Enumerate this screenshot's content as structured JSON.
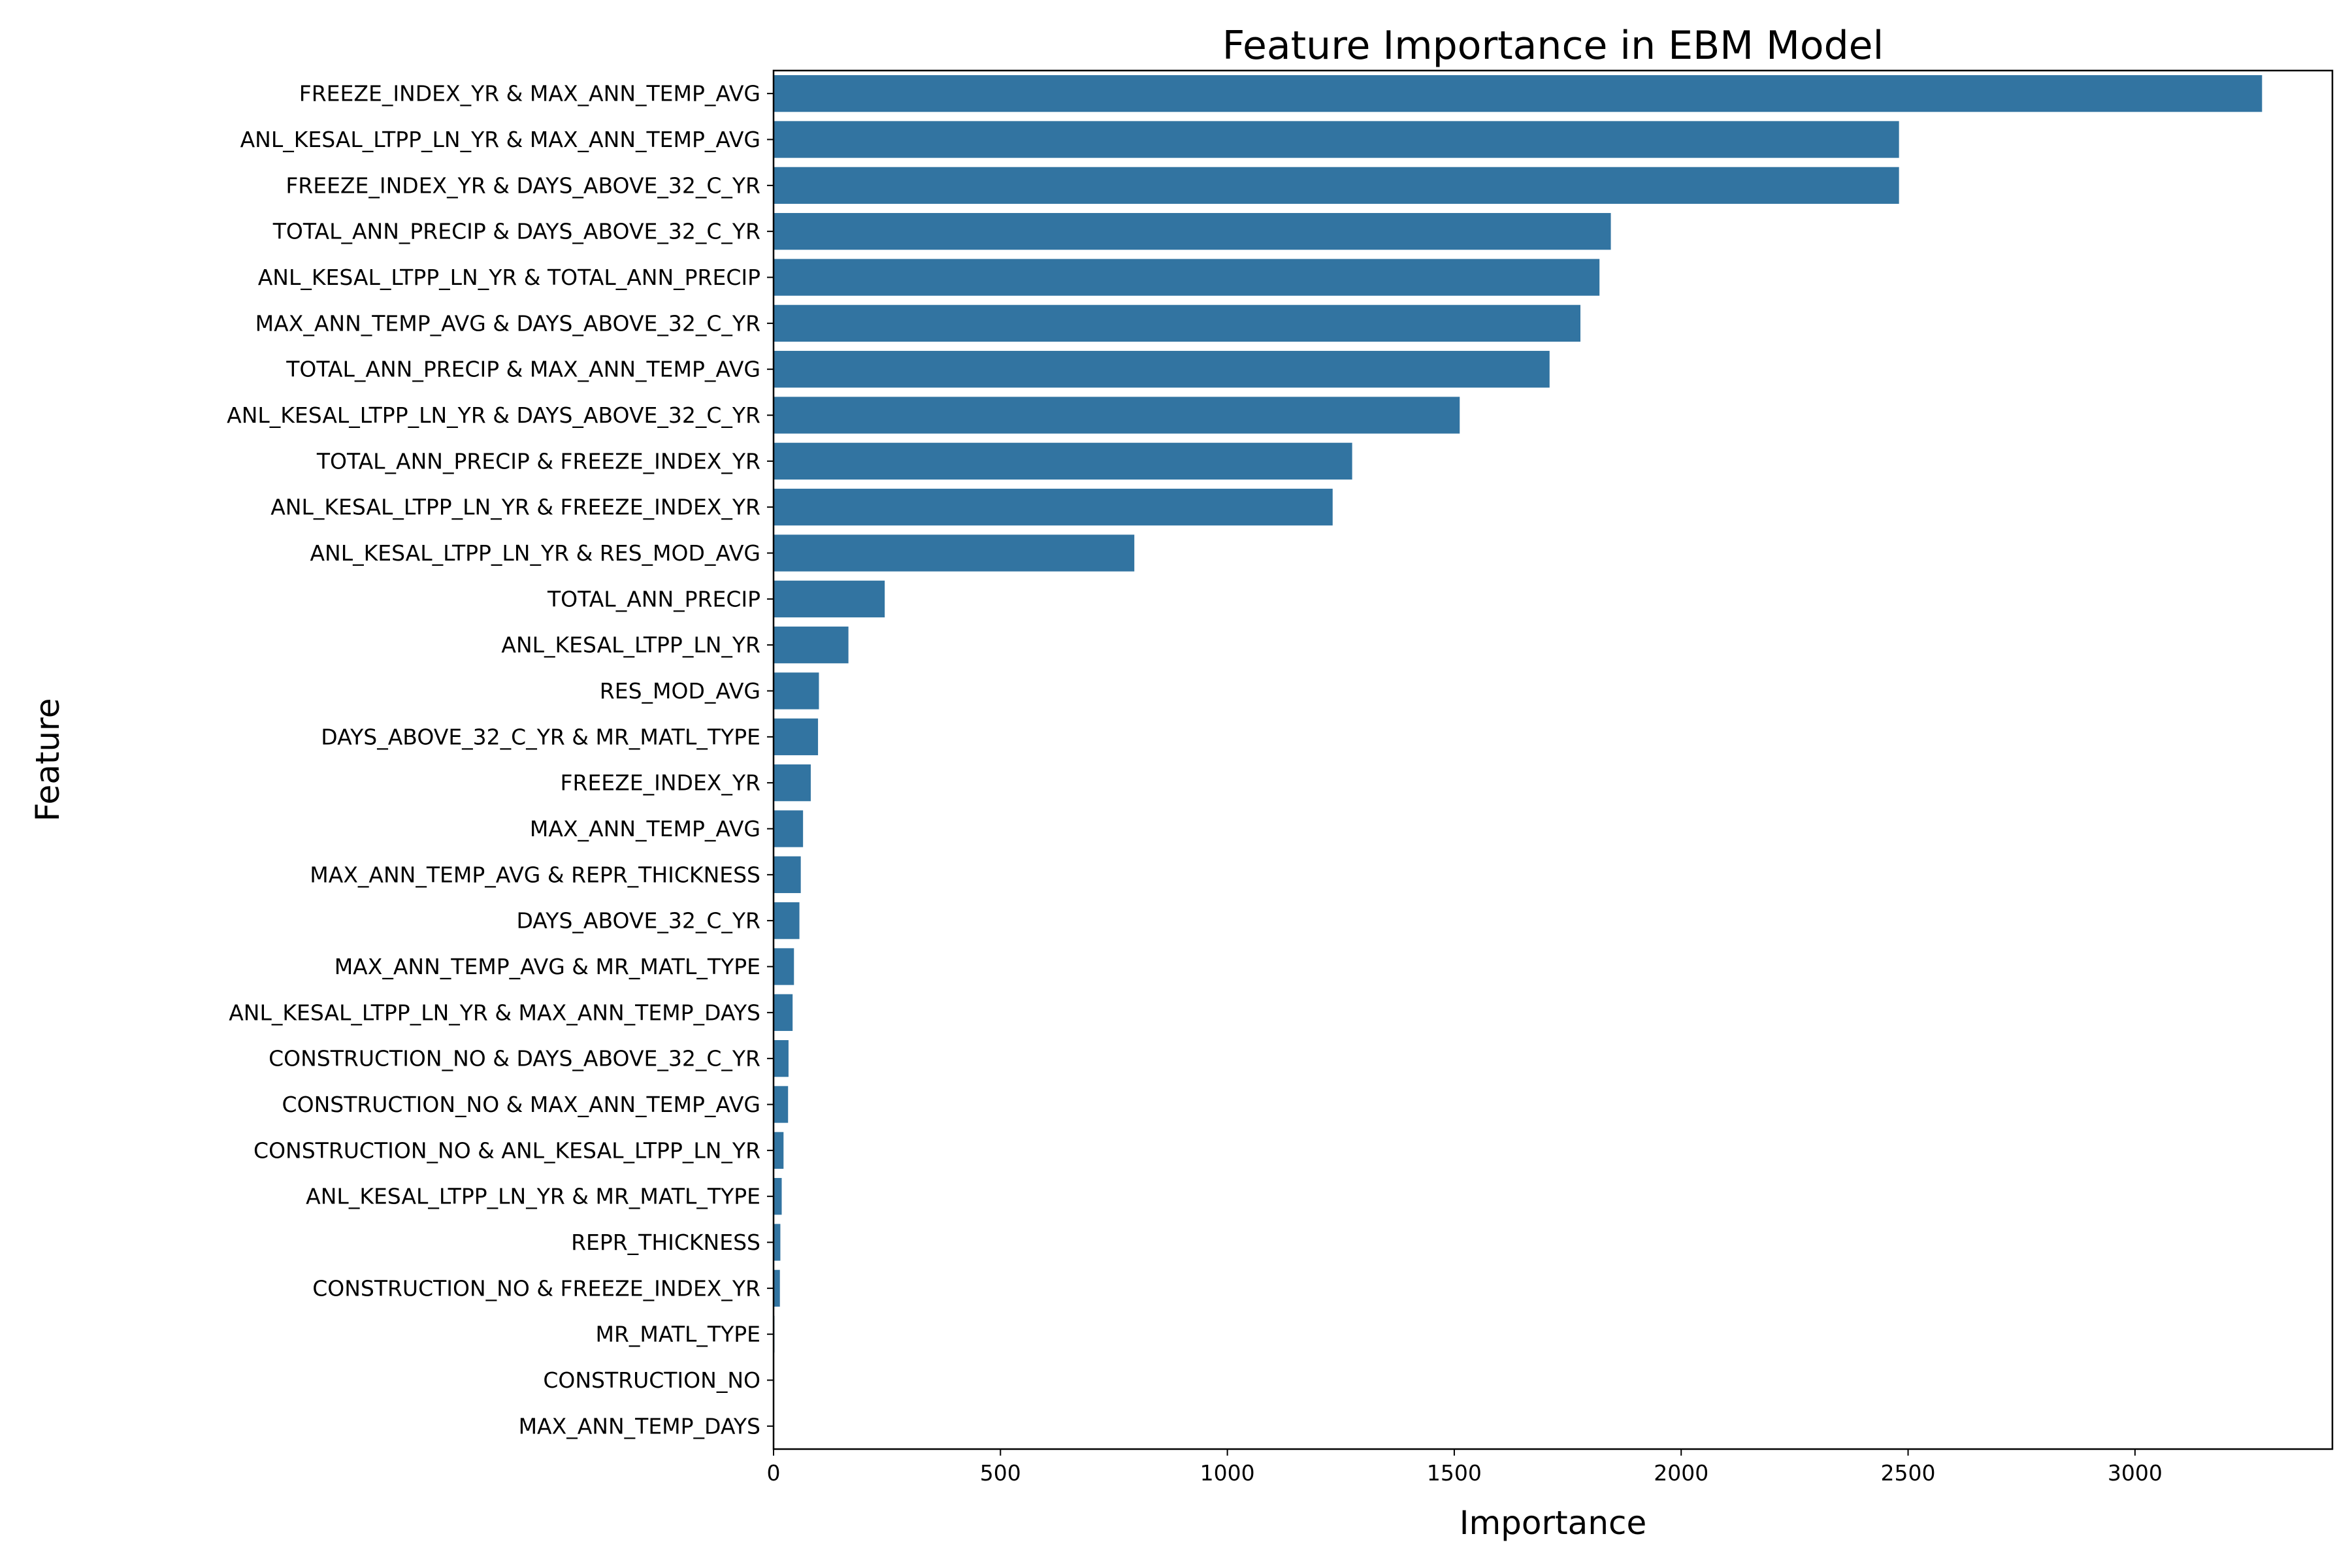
{
  "chart_data": {
    "type": "bar",
    "orientation": "horizontal",
    "title": "Feature Importance in EBM Model",
    "xlabel": "Importance",
    "ylabel": "Feature",
    "xlim": [
      0,
      3435
    ],
    "xticks": [
      0,
      500,
      1000,
      1500,
      2000,
      2500,
      3000
    ],
    "grid": false,
    "bar_color": "#3274a1",
    "categories": [
      "FREEZE_INDEX_YR & MAX_ANN_TEMP_AVG",
      "ANL_KESAL_LTPP_LN_YR & MAX_ANN_TEMP_AVG",
      "FREEZE_INDEX_YR & DAYS_ABOVE_32_C_YR",
      "TOTAL_ANN_PRECIP & DAYS_ABOVE_32_C_YR",
      "ANL_KESAL_LTPP_LN_YR & TOTAL_ANN_PRECIP",
      "MAX_ANN_TEMP_AVG & DAYS_ABOVE_32_C_YR",
      "TOTAL_ANN_PRECIP & MAX_ANN_TEMP_AVG",
      "ANL_KESAL_LTPP_LN_YR & DAYS_ABOVE_32_C_YR",
      "TOTAL_ANN_PRECIP & FREEZE_INDEX_YR",
      "ANL_KESAL_LTPP_LN_YR & FREEZE_INDEX_YR",
      "ANL_KESAL_LTPP_LN_YR & RES_MOD_AVG",
      "TOTAL_ANN_PRECIP",
      "ANL_KESAL_LTPP_LN_YR",
      "RES_MOD_AVG",
      "DAYS_ABOVE_32_C_YR & MR_MATL_TYPE",
      "FREEZE_INDEX_YR",
      "MAX_ANN_TEMP_AVG",
      "MAX_ANN_TEMP_AVG & REPR_THICKNESS",
      "DAYS_ABOVE_32_C_YR",
      "MAX_ANN_TEMP_AVG & MR_MATL_TYPE",
      "ANL_KESAL_LTPP_LN_YR & MAX_ANN_TEMP_DAYS",
      "CONSTRUCTION_NO & DAYS_ABOVE_32_C_YR",
      "CONSTRUCTION_NO & MAX_ANN_TEMP_AVG",
      "CONSTRUCTION_NO & ANL_KESAL_LTPP_LN_YR",
      "ANL_KESAL_LTPP_LN_YR & MR_MATL_TYPE",
      "REPR_THICKNESS",
      "CONSTRUCTION_NO & FREEZE_INDEX_YR",
      "MR_MATL_TYPE",
      "CONSTRUCTION_NO",
      "MAX_ANN_TEMP_DAYS"
    ],
    "values": [
      3280,
      2480,
      2480,
      1845,
      1820,
      1778,
      1710,
      1512,
      1275,
      1232,
      795,
      245,
      165,
      100,
      98,
      82,
      65,
      60,
      57,
      45,
      42,
      33,
      32,
      22,
      18,
      15,
      14,
      2,
      1,
      1
    ]
  }
}
